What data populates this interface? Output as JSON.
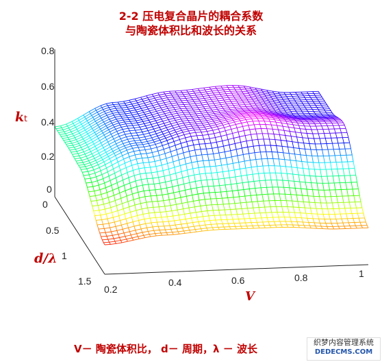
{
  "chart_data": {
    "type": "surface",
    "title": "2-2  压电复合晶片的耦合系数",
    "subtitle": "与陶瓷体积比和波长的关系",
    "xlabel": "V",
    "ylabel": "d/λ",
    "zlabel": "k",
    "zlabel_sub": "t",
    "x_ticks": [
      "0.2",
      "0.4",
      "0.6",
      "0.8",
      "1"
    ],
    "y_ticks": [
      "0",
      "0.5",
      "1",
      "1.5"
    ],
    "z_ticks": [
      "0",
      "0.2",
      "0.4",
      "0.6",
      "0.8"
    ],
    "xlim": [
      0.1,
      1.0
    ],
    "ylim": [
      0,
      1.5
    ],
    "zlim": [
      0,
      0.8
    ],
    "grid": false,
    "colormap": "hsv",
    "surface_samples": {
      "x": [
        0.1,
        0.3,
        0.5,
        0.7,
        0.9
      ],
      "d_over_lambda": [
        0,
        0.4,
        0.75,
        1.5
      ],
      "k": [
        [
          0.38,
          0.5,
          0.55,
          0.57,
          0.52
        ],
        [
          0.38,
          0.5,
          0.55,
          0.57,
          0.52
        ],
        [
          0.37,
          0.48,
          0.55,
          0.6,
          0.56
        ],
        [
          0.16,
          0.2,
          0.22,
          0.22,
          0.2
        ]
      ]
    }
  },
  "caption": "V－ 陶瓷体积比，  d－ 周期，λ － 波长",
  "watermark": {
    "line1": "织梦内容管理系统",
    "line2": "DEDECMS.COM"
  }
}
